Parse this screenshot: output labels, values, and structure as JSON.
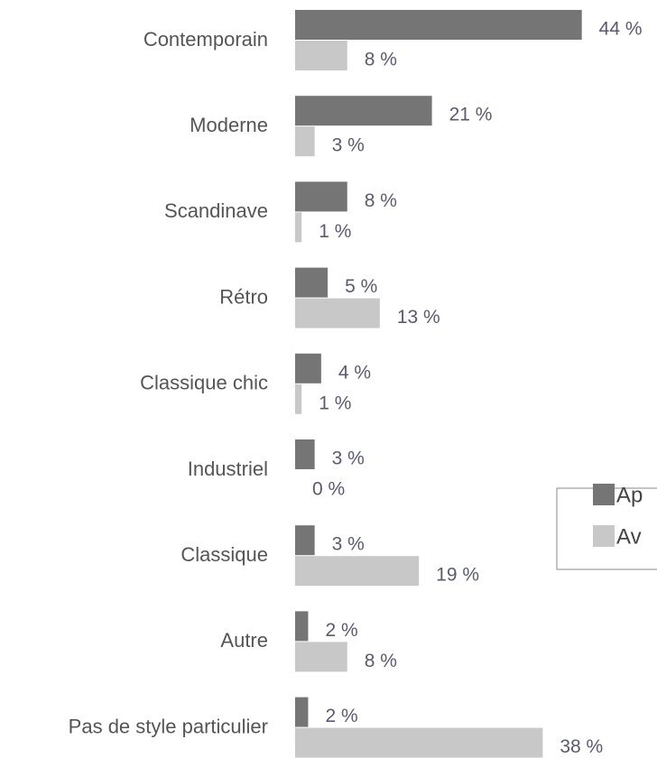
{
  "chart_data": {
    "type": "hbar",
    "categories": [
      "Contemporain",
      "Moderne",
      "Scandinave",
      "Rétro",
      "Classique chic",
      "Industriel",
      "Classique",
      "Autre",
      "Pas de style particulier"
    ],
    "series": [
      {
        "name": "Ap",
        "color": "#757575",
        "values": [
          44,
          21,
          8,
          5,
          4,
          3,
          3,
          2,
          2
        ],
        "value_labels": [
          "44 %",
          "21 %",
          "8 %",
          "5 %",
          "4 %",
          "3 %",
          "3 %",
          "2 %",
          "2 %"
        ]
      },
      {
        "name": "Av",
        "color": "#c8c8c8",
        "values": [
          8,
          3,
          1,
          13,
          1,
          0,
          19,
          8,
          38
        ],
        "value_labels": [
          "8 %",
          "3 %",
          "1 %",
          "13 %",
          "1 %",
          "0 %",
          "19 %",
          "8 %",
          "38 %"
        ]
      }
    ],
    "legend": "right"
  }
}
